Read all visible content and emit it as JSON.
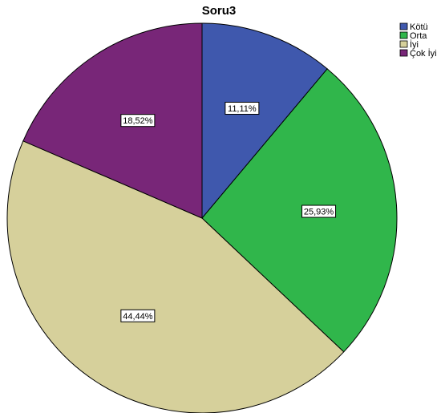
{
  "chart_data": {
    "type": "pie",
    "title": "Soru3",
    "categories": [
      "Kötü",
      "Orta",
      "İyi",
      "Çok İyi"
    ],
    "values": [
      11.11,
      25.93,
      44.44,
      18.52
    ],
    "labels": [
      "11,11%",
      "25,93%",
      "44,44%",
      "18,52%"
    ],
    "colors": [
      "#3f58ad",
      "#30b64b",
      "#d6d09b",
      "#782678"
    ],
    "start_angle": "top",
    "direction": "clockwise",
    "legend": {
      "placement": "top-right",
      "entries": [
        "Kötü",
        "Orta",
        "İyi",
        "Çok İyi"
      ]
    }
  }
}
